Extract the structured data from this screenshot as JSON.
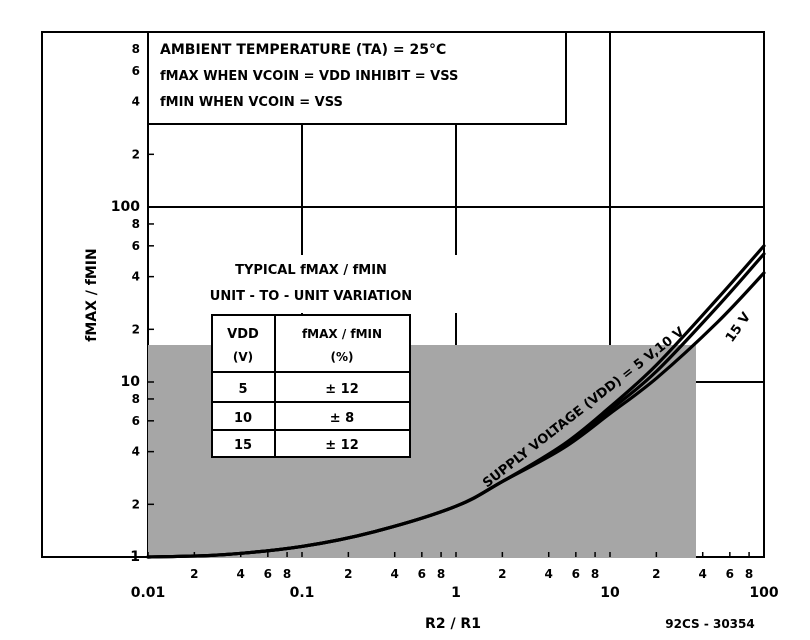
{
  "chart_data": {
    "type": "line",
    "xlabel": "R2 / R1",
    "ylabel": "fMAX / fMIN",
    "x_scale": "log",
    "y_scale": "log",
    "xlim": [
      0.01,
      100
    ],
    "ylim": [
      1,
      1000
    ],
    "x_tick_labels": [
      {
        "v": 0.01,
        "t": "0.01"
      },
      {
        "v": 0.02,
        "t": "2"
      },
      {
        "v": 0.04,
        "t": "4"
      },
      {
        "v": 0.06,
        "t": "6"
      },
      {
        "v": 0.08,
        "t": "8"
      },
      {
        "v": 0.1,
        "t": "0.1"
      },
      {
        "v": 0.2,
        "t": "2"
      },
      {
        "v": 0.4,
        "t": "4"
      },
      {
        "v": 0.6,
        "t": "6"
      },
      {
        "v": 0.8,
        "t": "8"
      },
      {
        "v": 1,
        "t": "1"
      },
      {
        "v": 2,
        "t": "2"
      },
      {
        "v": 4,
        "t": "4"
      },
      {
        "v": 6,
        "t": "6"
      },
      {
        "v": 8,
        "t": "8"
      },
      {
        "v": 10,
        "t": "10"
      },
      {
        "v": 20,
        "t": "2"
      },
      {
        "v": 40,
        "t": "4"
      },
      {
        "v": 60,
        "t": "6"
      },
      {
        "v": 80,
        "t": "8"
      },
      {
        "v": 100,
        "t": "100"
      }
    ],
    "y_tick_labels": [
      {
        "v": 1,
        "t": "1"
      },
      {
        "v": 2,
        "t": "2"
      },
      {
        "v": 4,
        "t": "4"
      },
      {
        "v": 6,
        "t": "6"
      },
      {
        "v": 8,
        "t": "8"
      },
      {
        "v": 10,
        "t": "10"
      },
      {
        "v": 20,
        "t": "2"
      },
      {
        "v": 40,
        "t": "4"
      },
      {
        "v": 60,
        "t": "6"
      },
      {
        "v": 80,
        "t": "8"
      },
      {
        "v": 100,
        "t": "100"
      },
      {
        "v": 200,
        "t": "2"
      },
      {
        "v": 400,
        "t": "4"
      },
      {
        "v": 600,
        "t": "6"
      },
      {
        "v": 800,
        "t": "8"
      }
    ],
    "major_grid_x": [
      0.1,
      1,
      10
    ],
    "major_grid_y": [
      10,
      100
    ],
    "grid": true,
    "series": [
      {
        "name": "5 V",
        "x": [
          0.01,
          0.03,
          0.1,
          0.3,
          1,
          2,
          5,
          10,
          20,
          50,
          100
        ],
        "y": [
          1.0,
          1.03,
          1.15,
          1.4,
          1.95,
          2.7,
          4.4,
          7.2,
          12.5,
          30,
          60
        ]
      },
      {
        "name": "10 V",
        "x": [
          0.01,
          0.03,
          0.1,
          0.3,
          1,
          2,
          5,
          10,
          20,
          50,
          100
        ],
        "y": [
          1.0,
          1.03,
          1.15,
          1.4,
          1.95,
          2.7,
          4.3,
          6.9,
          11.5,
          27,
          54
        ]
      },
      {
        "name": "15 V",
        "x": [
          0.01,
          0.03,
          0.1,
          0.3,
          1,
          2,
          5,
          10,
          20,
          50,
          100
        ],
        "y": [
          1.0,
          1.03,
          1.15,
          1.4,
          1.95,
          2.7,
          4.2,
          6.6,
          10.5,
          22,
          42
        ]
      }
    ],
    "curve_label": "SUPPLY VOLTAGE (VDD) = 5 V,10 V",
    "curve_label_2": "15 V",
    "conditions": [
      "AMBIENT TEMPERATURE (TA) = 25°C",
      "fMAX WHEN VCOIN = VDD INHIBIT = VSS",
      "fMIN WHEN VCOIN = VSS"
    ],
    "variation_table": {
      "title_line1": "TYPICAL fMAX / fMIN",
      "title_line2": "UNIT - TO - UNIT VARIATION",
      "header_col1": "VDD",
      "header_col1_unit": "(V)",
      "header_col2": "fMAX / fMIN",
      "header_col2_unit": "(%)",
      "rows": [
        {
          "vdd": "5",
          "variation": "± 12"
        },
        {
          "vdd": "10",
          "variation": "± 8"
        },
        {
          "vdd": "15",
          "variation": "± 12"
        }
      ]
    },
    "figure_code": "92CS - 30354",
    "overlay_color": "#a6a6a6"
  }
}
